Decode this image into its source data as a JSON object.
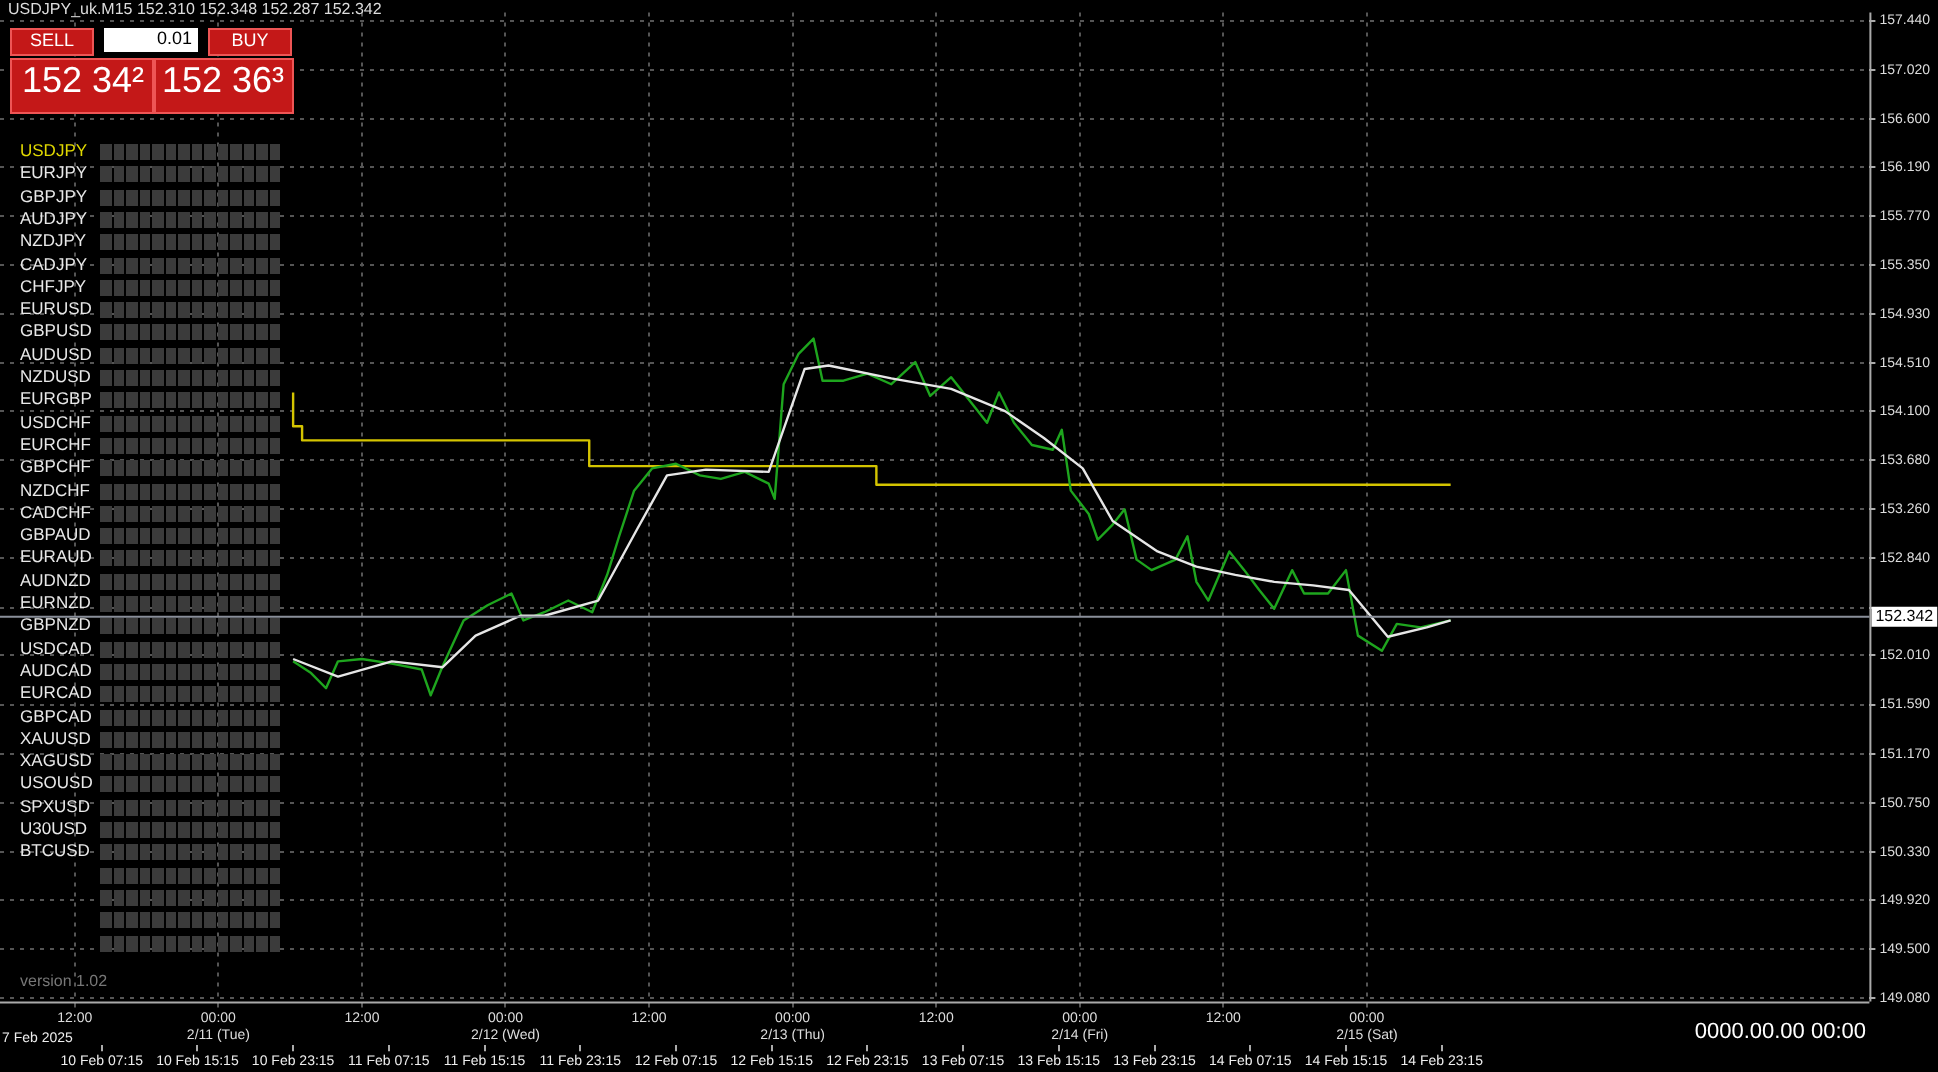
{
  "chart_data": [
    {
      "type": "line",
      "title": "USDJPY_uk.M15 152.310 152.348 152.287 152.342",
      "annotations": [
        "SELL",
        "0.01",
        "BUY",
        "152 34²",
        "152 36³",
        "version 1.02",
        "0000.00.00 00:00",
        "7 Feb 2025"
      ],
      "xlim": [
        "2025-02-09T22:45",
        "2025-02-16T11:00"
      ],
      "xticks": [
        {
          "value": "2025-02-10T07:15",
          "label": "10 Feb 07:15"
        },
        {
          "value": "2025-02-10T15:15",
          "label": "10 Feb 15:15"
        },
        {
          "value": "2025-02-10T23:15",
          "label": "10 Feb 23:15"
        },
        {
          "value": "2025-02-11T07:15",
          "label": "11 Feb 07:15"
        },
        {
          "value": "2025-02-11T15:15",
          "label": "11 Feb 15:15"
        },
        {
          "value": "2025-02-11T23:15",
          "label": "11 Feb 23:15"
        },
        {
          "value": "2025-02-12T07:15",
          "label": "12 Feb 07:15"
        },
        {
          "value": "2025-02-12T15:15",
          "label": "12 Feb 15:15"
        },
        {
          "value": "2025-02-12T23:15",
          "label": "12 Feb 23:15"
        },
        {
          "value": "2025-02-13T07:15",
          "label": "13 Feb 07:15"
        },
        {
          "value": "2025-02-13T15:15",
          "label": "13 Feb 15:15"
        },
        {
          "value": "2025-02-13T23:15",
          "label": "13 Feb 23:15"
        },
        {
          "value": "2025-02-14T07:15",
          "label": "14 Feb 07:15"
        },
        {
          "value": "2025-02-14T15:15",
          "label": "14 Feb 15:15"
        },
        {
          "value": "2025-02-14T23:15",
          "label": "14 Feb 23:15"
        }
      ],
      "x2lim": [
        "2025-02-10T05:45",
        "2025-02-16T18:00"
      ],
      "x2ticks": [
        {
          "value": "2025-02-10T12:00",
          "label": "12:00"
        },
        {
          "value": "2025-02-11T00:00",
          "label": "00:00\n2/11 (Tue)"
        },
        {
          "value": "2025-02-11T12:00",
          "label": "12:00"
        },
        {
          "value": "2025-02-12T00:00",
          "label": "00:00\n2/12 (Wed)"
        },
        {
          "value": "2025-02-12T12:00",
          "label": "12:00"
        },
        {
          "value": "2025-02-13T00:00",
          "label": "00:00\n2/13 (Thu)"
        },
        {
          "value": "2025-02-13T12:00",
          "label": "12:00"
        },
        {
          "value": "2025-02-14T00:00",
          "label": "00:00\n2/14 (Fri)"
        },
        {
          "value": "2025-02-14T12:00",
          "label": "12:00"
        },
        {
          "value": "2025-02-15T00:00",
          "label": "00:00\n2/15 (Sat)"
        }
      ],
      "ylim": [
        149.05,
        157.51
      ],
      "yticks": [
        {
          "value": 149.08,
          "label": "149.080"
        },
        {
          "value": 149.5,
          "label": "149.500"
        },
        {
          "value": 149.92,
          "label": "149.920"
        },
        {
          "value": 150.33,
          "label": "150.330"
        },
        {
          "value": 150.75,
          "label": "150.750"
        },
        {
          "value": 151.17,
          "label": "151.170"
        },
        {
          "value": 151.59,
          "label": "151.590"
        },
        {
          "value": 152.01,
          "label": "152.010"
        },
        {
          "value": 152.42,
          "label": null
        },
        {
          "value": 152.84,
          "label": "152.840"
        },
        {
          "value": 153.26,
          "label": "153.260"
        },
        {
          "value": 153.68,
          "label": "153.680"
        },
        {
          "value": 154.1,
          "label": "154.100"
        },
        {
          "value": 154.51,
          "label": "154.510"
        },
        {
          "value": 154.93,
          "label": "154.930"
        },
        {
          "value": 155.35,
          "label": "155.350"
        },
        {
          "value": 155.77,
          "label": "155.770"
        },
        {
          "value": 156.19,
          "label": "156.190"
        },
        {
          "value": 156.6,
          "label": "156.600"
        },
        {
          "value": 157.02,
          "label": "157.020"
        },
        {
          "value": 157.44,
          "label": "157.440"
        }
      ],
      "grid": true,
      "marker": "none",
      "line_style": "solid",
      "ref_lines": [
        {
          "axis": "y",
          "value": 152.342,
          "label": "152.342",
          "color": "#8a8f9a"
        }
      ],
      "series": [
        {
          "type": "step",
          "color": "#d4c400",
          "x": [
            "2025-02-10T23:15",
            "2025-02-11T00:00",
            "2025-02-12T00:00",
            "2025-02-13T00:00",
            "2025-02-14T00:00",
            "2025-02-15T00:00"
          ],
          "values": [
            154.26,
            153.97,
            153.85,
            153.63,
            153.47,
            153.47
          ]
        },
        {
          "type": "line",
          "color": "#1ea51e",
          "x": [
            "2025-02-10T23:15",
            "2025-02-11T00:45",
            "2025-02-11T02:00",
            "2025-02-11T03:00",
            "2025-02-11T05:00",
            "2025-02-11T07:30",
            "2025-02-11T10:00",
            "2025-02-11T10:45",
            "2025-02-11T11:45",
            "2025-02-11T13:30",
            "2025-02-11T15:30",
            "2025-02-11T17:30",
            "2025-02-11T18:30",
            "2025-02-11T20:15",
            "2025-02-11T22:15",
            "2025-02-12T00:15",
            "2025-02-12T01:30",
            "2025-02-12T02:30",
            "2025-02-12T03:45",
            "2025-02-12T05:15",
            "2025-02-12T07:15",
            "2025-02-12T09:15",
            "2025-02-12T11:00",
            "2025-02-12T13:00",
            "2025-02-12T15:00",
            "2025-02-12T15:30",
            "2025-02-12T16:15",
            "2025-02-12T17:30",
            "2025-02-12T18:45",
            "2025-02-12T19:30",
            "2025-02-12T21:15",
            "2025-02-12T23:15",
            "2025-02-13T01:15",
            "2025-02-13T03:15",
            "2025-02-13T04:30",
            "2025-02-13T06:15",
            "2025-02-13T08:15",
            "2025-02-13T09:15",
            "2025-02-13T10:15",
            "2025-02-13T11:30",
            "2025-02-13T13:00",
            "2025-02-13T14:45",
            "2025-02-13T15:30",
            "2025-02-13T16:15",
            "2025-02-13T17:45",
            "2025-02-13T18:30",
            "2025-02-13T19:45",
            "2025-02-13T20:45",
            "2025-02-13T21:45",
            "2025-02-13T23:00",
            "2025-02-14T01:00",
            "2025-02-14T02:00",
            "2025-02-14T02:45",
            "2025-02-14T03:45",
            "2025-02-14T05:30",
            "2025-02-14T06:45",
            "2025-02-14T08:00",
            "2025-02-14T09:15",
            "2025-02-14T10:45",
            "2025-02-14T11:45",
            "2025-02-14T13:45",
            "2025-02-14T15:15",
            "2025-02-14T16:15",
            "2025-02-14T18:15",
            "2025-02-14T19:30",
            "2025-02-14T21:30",
            "2025-02-15T00:00"
          ],
          "values": [
            151.96,
            151.86,
            151.73,
            151.96,
            151.98,
            151.94,
            151.89,
            151.67,
            151.92,
            152.31,
            152.44,
            152.54,
            152.31,
            152.38,
            152.48,
            152.38,
            152.7,
            153.03,
            153.42,
            153.61,
            153.65,
            153.55,
            153.52,
            153.58,
            153.48,
            153.35,
            154.33,
            154.59,
            154.72,
            154.36,
            154.36,
            154.42,
            154.33,
            154.52,
            154.23,
            154.39,
            154.13,
            154.0,
            154.26,
            154.0,
            153.81,
            153.77,
            153.94,
            153.42,
            153.22,
            153.0,
            153.13,
            153.26,
            152.83,
            152.74,
            152.83,
            153.03,
            152.64,
            152.48,
            152.9,
            152.74,
            152.57,
            152.41,
            152.74,
            152.54,
            152.54,
            152.74,
            152.18,
            152.05,
            152.28,
            152.25,
            152.31
          ]
        },
        {
          "type": "line",
          "color": "#e6e6e6",
          "x": [
            "2025-02-10T23:15",
            "2025-02-11T03:00",
            "2025-02-11T07:30",
            "2025-02-11T11:45",
            "2025-02-11T14:30",
            "2025-02-11T18:15",
            "2025-02-11T20:15",
            "2025-02-12T00:45",
            "2025-02-12T04:00",
            "2025-02-12T06:30",
            "2025-02-12T09:45",
            "2025-02-12T15:00",
            "2025-02-12T18:00",
            "2025-02-12T20:00",
            "2025-02-13T01:15",
            "2025-02-13T06:15",
            "2025-02-13T10:45",
            "2025-02-13T14:00",
            "2025-02-13T17:15",
            "2025-02-13T19:45",
            "2025-02-13T23:30",
            "2025-02-14T02:45",
            "2025-02-14T06:00",
            "2025-02-14T09:15",
            "2025-02-14T12:30",
            "2025-02-14T15:30",
            "2025-02-14T18:45",
            "2025-02-14T22:00",
            "2025-02-15T00:00"
          ],
          "values": [
            151.98,
            151.83,
            151.96,
            151.91,
            152.18,
            152.35,
            152.35,
            152.48,
            153.09,
            153.55,
            153.6,
            153.58,
            154.46,
            154.49,
            154.38,
            154.29,
            154.1,
            153.87,
            153.61,
            153.16,
            152.9,
            152.77,
            152.7,
            152.64,
            152.61,
            152.57,
            152.17,
            152.25,
            152.31
          ]
        }
      ]
    },
    {
      "type": "other",
      "annotations": [
        "USDJPY",
        "EURJPY",
        "GBPJPY",
        "AUDJPY",
        "NZDJPY",
        "CADJPY",
        "CHFJPY",
        "EURUSD",
        "GBPUSD",
        "AUDUSD",
        "NZDUSD",
        "EURGBP",
        "USDCHF",
        "EURCHF",
        "GBPCHF",
        "NZDCHF",
        "CADCHF",
        "GBPAUD",
        "EURAUD",
        "AUDNZD",
        "EURNZD",
        "GBPNZD",
        "USDCAD",
        "AUDCAD",
        "EURCAD",
        "GBPCAD",
        "XAUUSD",
        "XAGUSD",
        "USOUSD",
        "SPXUSD",
        "U30USD",
        "BTCUSD"
      ]
    }
  ]
}
